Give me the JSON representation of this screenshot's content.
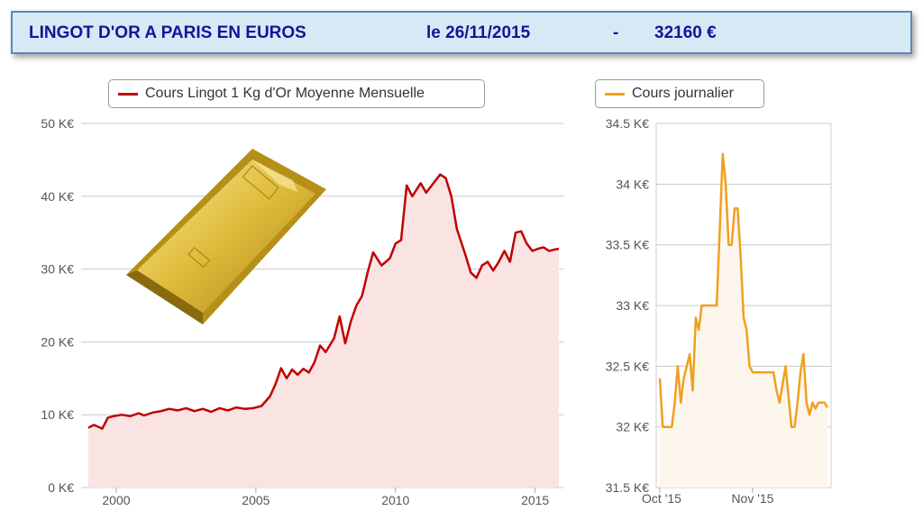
{
  "banner": {
    "title": "LINGOT D'OR A PARIS EN EUROS",
    "date": "le 26/11/2015",
    "dash": "-",
    "price": "32160 €",
    "colors": {
      "background": "#d6eaf5",
      "border": "#5d86b8",
      "text": "#14149a"
    }
  },
  "chart_data": [
    {
      "type": "area",
      "legend": "Cours Lingot 1 Kg d'Or Moyenne Mensuelle",
      "color": "#c00000",
      "fill_color": "#f9e3e3",
      "ylim": [
        0,
        50
      ],
      "xlim": [
        1999,
        2015.85
      ],
      "y_ticks": [
        0,
        10,
        20,
        30,
        40,
        50
      ],
      "y_tick_labels": [
        "0 K€",
        "10 K€",
        "20 K€",
        "30 K€",
        "40 K€",
        "50 K€"
      ],
      "x_ticks": [
        2000,
        2005,
        2010,
        2015
      ],
      "x_tick_labels": [
        "2000",
        "2005",
        "2010",
        "2015"
      ],
      "grid": "horizontal",
      "series": [
        {
          "name": "Cours Lingot 1 Kg d'Or Moyenne Mensuelle",
          "x": [
            1999.0,
            1999.2,
            1999.5,
            1999.7,
            1999.9,
            2000.2,
            2000.5,
            2000.8,
            2001.0,
            2001.3,
            2001.6,
            2001.9,
            2002.2,
            2002.5,
            2002.8,
            2003.1,
            2003.4,
            2003.7,
            2004.0,
            2004.3,
            2004.6,
            2004.9,
            2005.2,
            2005.5,
            2005.7,
            2005.9,
            2006.1,
            2006.3,
            2006.5,
            2006.7,
            2006.9,
            2007.1,
            2007.3,
            2007.5,
            2007.8,
            2008.0,
            2008.2,
            2008.4,
            2008.6,
            2008.8,
            2009.0,
            2009.2,
            2009.5,
            2009.8,
            2010.0,
            2010.2,
            2010.4,
            2010.6,
            2010.9,
            2011.1,
            2011.4,
            2011.6,
            2011.8,
            2012.0,
            2012.2,
            2012.5,
            2012.7,
            2012.9,
            2013.1,
            2013.3,
            2013.5,
            2013.7,
            2013.9,
            2014.1,
            2014.3,
            2014.5,
            2014.7,
            2014.9,
            2015.1,
            2015.3,
            2015.5,
            2015.7,
            2015.85
          ],
          "y": [
            8.2,
            8.6,
            8.1,
            9.6,
            9.8,
            10.0,
            9.8,
            10.2,
            9.9,
            10.3,
            10.5,
            10.8,
            10.6,
            10.9,
            10.5,
            10.8,
            10.4,
            10.9,
            10.6,
            11.0,
            10.8,
            10.9,
            11.2,
            12.5,
            14.2,
            16.4,
            15.0,
            16.2,
            15.5,
            16.3,
            15.8,
            17.2,
            19.5,
            18.6,
            20.5,
            23.5,
            19.8,
            22.8,
            25.0,
            26.3,
            29.5,
            32.3,
            30.5,
            31.5,
            33.5,
            34.0,
            41.5,
            40.0,
            41.8,
            40.5,
            42.0,
            43.0,
            42.5,
            40.0,
            35.5,
            32.0,
            29.5,
            28.8,
            30.5,
            31.0,
            29.8,
            31.0,
            32.5,
            31.0,
            35.0,
            35.2,
            33.5,
            32.5,
            32.8,
            33.0,
            32.5,
            32.7,
            32.8
          ]
        }
      ]
    },
    {
      "type": "area",
      "legend": "Cours journalier",
      "color": "#f0a020",
      "fill_color": "#fdf6ec",
      "ylim": [
        31.5,
        34.5
      ],
      "y_ticks": [
        31.5,
        32,
        32.5,
        33,
        33.5,
        34,
        34.5
      ],
      "y_tick_labels": [
        "31.5 K€",
        "32 K€",
        "32.5 K€",
        "33 K€",
        "33.5 K€",
        "34 K€",
        "34.5 K€"
      ],
      "x_tick_labels": [
        "Oct '15",
        "Nov '15"
      ],
      "x_tick_days": [
        0,
        31
      ],
      "xlim_days": [
        0,
        56
      ],
      "grid": "horizontal",
      "series": [
        {
          "name": "Cours journalier",
          "x": [
            0,
            1,
            2,
            4,
            5,
            6,
            7,
            8,
            10,
            11,
            12,
            13,
            14,
            15,
            16,
            17,
            18,
            19,
            20,
            21,
            22,
            23,
            24,
            25,
            26,
            27,
            28,
            29,
            30,
            31,
            32,
            33,
            34,
            35,
            36,
            37,
            38,
            39,
            40,
            42,
            44,
            45,
            46,
            47,
            48,
            49,
            50,
            51,
            52,
            53,
            54,
            55,
            56
          ],
          "y": [
            32.4,
            32.0,
            32.0,
            32.0,
            32.2,
            32.5,
            32.2,
            32.4,
            32.6,
            32.3,
            32.9,
            32.8,
            33.0,
            33.0,
            33.0,
            33.0,
            33.0,
            33.0,
            33.6,
            34.25,
            34.0,
            33.5,
            33.5,
            33.8,
            33.8,
            33.4,
            32.9,
            32.8,
            32.5,
            32.45,
            32.45,
            32.45,
            32.45,
            32.45,
            32.45,
            32.45,
            32.45,
            32.3,
            32.2,
            32.5,
            32.0,
            32.0,
            32.2,
            32.45,
            32.6,
            32.2,
            32.1,
            32.2,
            32.15,
            32.2,
            32.2,
            32.2,
            32.16
          ]
        }
      ]
    }
  ]
}
